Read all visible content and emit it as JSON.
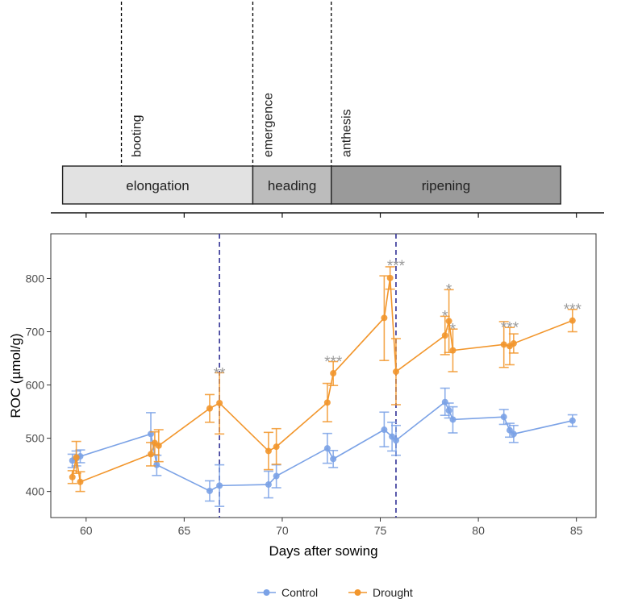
{
  "chart_data": {
    "type": "line",
    "xlabel": "Days after sowing",
    "ylabel": "ROC (µmol/g)",
    "xlim": [
      58.2,
      86.0
    ],
    "ylim": [
      351,
      884
    ],
    "xticks": [
      60,
      65,
      70,
      75,
      80,
      85
    ],
    "yticks": [
      400,
      500,
      600,
      700,
      800
    ],
    "grid": false,
    "legend_position": "bottom",
    "colors": {
      "Control": "#7BA2E6",
      "Drought": "#F2962C",
      "vline": "#3D3D9C",
      "sig": "#999999"
    },
    "series": [
      {
        "name": "Control",
        "points": [
          {
            "x": 59.3,
            "y": 458,
            "lo": 445,
            "hi": 470
          },
          {
            "x": 59.5,
            "y": 462,
            "lo": 448,
            "hi": 476
          },
          {
            "x": 59.7,
            "y": 466,
            "lo": 454,
            "hi": 478
          },
          {
            "x": 63.3,
            "y": 508,
            "lo": 468,
            "hi": 548
          },
          {
            "x": 63.6,
            "y": 450,
            "lo": 430,
            "hi": 468
          },
          {
            "x": 66.3,
            "y": 401,
            "lo": 382,
            "hi": 420
          },
          {
            "x": 66.8,
            "y": 411,
            "lo": 372,
            "hi": 450
          },
          {
            "x": 69.3,
            "y": 413,
            "lo": 388,
            "hi": 438
          },
          {
            "x": 69.7,
            "y": 429,
            "lo": 407,
            "hi": 450
          },
          {
            "x": 72.3,
            "y": 481,
            "lo": 453,
            "hi": 509
          },
          {
            "x": 72.6,
            "y": 461,
            "lo": 445,
            "hi": 477
          },
          {
            "x": 75.2,
            "y": 516,
            "lo": 484,
            "hi": 549
          },
          {
            "x": 75.6,
            "y": 503,
            "lo": 476,
            "hi": 530
          },
          {
            "x": 75.8,
            "y": 496,
            "lo": 468,
            "hi": 524
          },
          {
            "x": 78.3,
            "y": 568,
            "lo": 543,
            "hi": 594
          },
          {
            "x": 78.5,
            "y": 552,
            "lo": 538,
            "hi": 566
          },
          {
            "x": 78.7,
            "y": 535,
            "lo": 510,
            "hi": 559
          },
          {
            "x": 81.3,
            "y": 540,
            "lo": 526,
            "hi": 554
          },
          {
            "x": 81.6,
            "y": 515,
            "lo": 502,
            "hi": 528
          },
          {
            "x": 81.8,
            "y": 508,
            "lo": 492,
            "hi": 524
          },
          {
            "x": 84.8,
            "y": 533,
            "lo": 522,
            "hi": 544
          }
        ]
      },
      {
        "name": "Drought",
        "points": [
          {
            "x": 59.3,
            "y": 427,
            "lo": 415,
            "hi": 439
          },
          {
            "x": 59.5,
            "y": 464,
            "lo": 434,
            "hi": 494
          },
          {
            "x": 59.7,
            "y": 418,
            "lo": 400,
            "hi": 437
          },
          {
            "x": 63.3,
            "y": 470,
            "lo": 448,
            "hi": 492
          },
          {
            "x": 63.5,
            "y": 491,
            "lo": 469,
            "hi": 512
          },
          {
            "x": 63.7,
            "y": 486,
            "lo": 456,
            "hi": 516
          },
          {
            "x": 66.3,
            "y": 556,
            "lo": 530,
            "hi": 582
          },
          {
            "x": 66.8,
            "y": 566,
            "lo": 508,
            "hi": 623
          },
          {
            "x": 69.3,
            "y": 476,
            "lo": 441,
            "hi": 511
          },
          {
            "x": 69.7,
            "y": 484,
            "lo": 451,
            "hi": 518
          },
          {
            "x": 72.3,
            "y": 567,
            "lo": 531,
            "hi": 603
          },
          {
            "x": 72.6,
            "y": 622,
            "lo": 599,
            "hi": 644
          },
          {
            "x": 75.2,
            "y": 726,
            "lo": 646,
            "hi": 805
          },
          {
            "x": 75.5,
            "y": 801,
            "lo": 780,
            "hi": 822
          },
          {
            "x": 75.8,
            "y": 625,
            "lo": 563,
            "hi": 687
          },
          {
            "x": 78.3,
            "y": 693,
            "lo": 657,
            "hi": 729
          },
          {
            "x": 78.5,
            "y": 720,
            "lo": 661,
            "hi": 779
          },
          {
            "x": 78.7,
            "y": 665,
            "lo": 625,
            "hi": 705
          },
          {
            "x": 81.3,
            "y": 676,
            "lo": 633,
            "hi": 719
          },
          {
            "x": 81.6,
            "y": 673,
            "lo": 638,
            "hi": 708
          },
          {
            "x": 81.8,
            "y": 678,
            "lo": 660,
            "hi": 696
          },
          {
            "x": 84.8,
            "y": 721,
            "lo": 700,
            "hi": 742
          }
        ]
      }
    ],
    "vlines": [
      66.8,
      75.8
    ],
    "significance": [
      {
        "x": 66.8,
        "y": 626,
        "label": "**"
      },
      {
        "x": 72.6,
        "y": 648,
        "label": "***"
      },
      {
        "x": 75.8,
        "y": 828,
        "label": "***"
      },
      {
        "x": 78.3,
        "y": 733,
        "label": "*"
      },
      {
        "x": 78.5,
        "y": 783,
        "label": "*"
      },
      {
        "x": 78.7,
        "y": 709,
        "label": "*"
      },
      {
        "x": 81.6,
        "y": 712,
        "label": "***"
      },
      {
        "x": 84.8,
        "y": 746,
        "label": "***"
      }
    ],
    "legend": [
      "Control",
      "Drought"
    ]
  },
  "phases": {
    "x_ticks": [
      60,
      65,
      70,
      75,
      80,
      85
    ],
    "stages": [
      {
        "label": "elongation",
        "start": 58.8,
        "end": 68.5,
        "color": "#E2E2E2"
      },
      {
        "label": "heading",
        "start": 68.5,
        "end": 72.5,
        "color": "#BCBCBC"
      },
      {
        "label": "ripening",
        "start": 72.5,
        "end": 84.2,
        "color": "#9A9A9A"
      }
    ],
    "events": [
      {
        "label": "booting",
        "x": 61.8
      },
      {
        "label": "emergence",
        "x": 68.5
      },
      {
        "label": "anthesis",
        "x": 72.5
      }
    ]
  }
}
